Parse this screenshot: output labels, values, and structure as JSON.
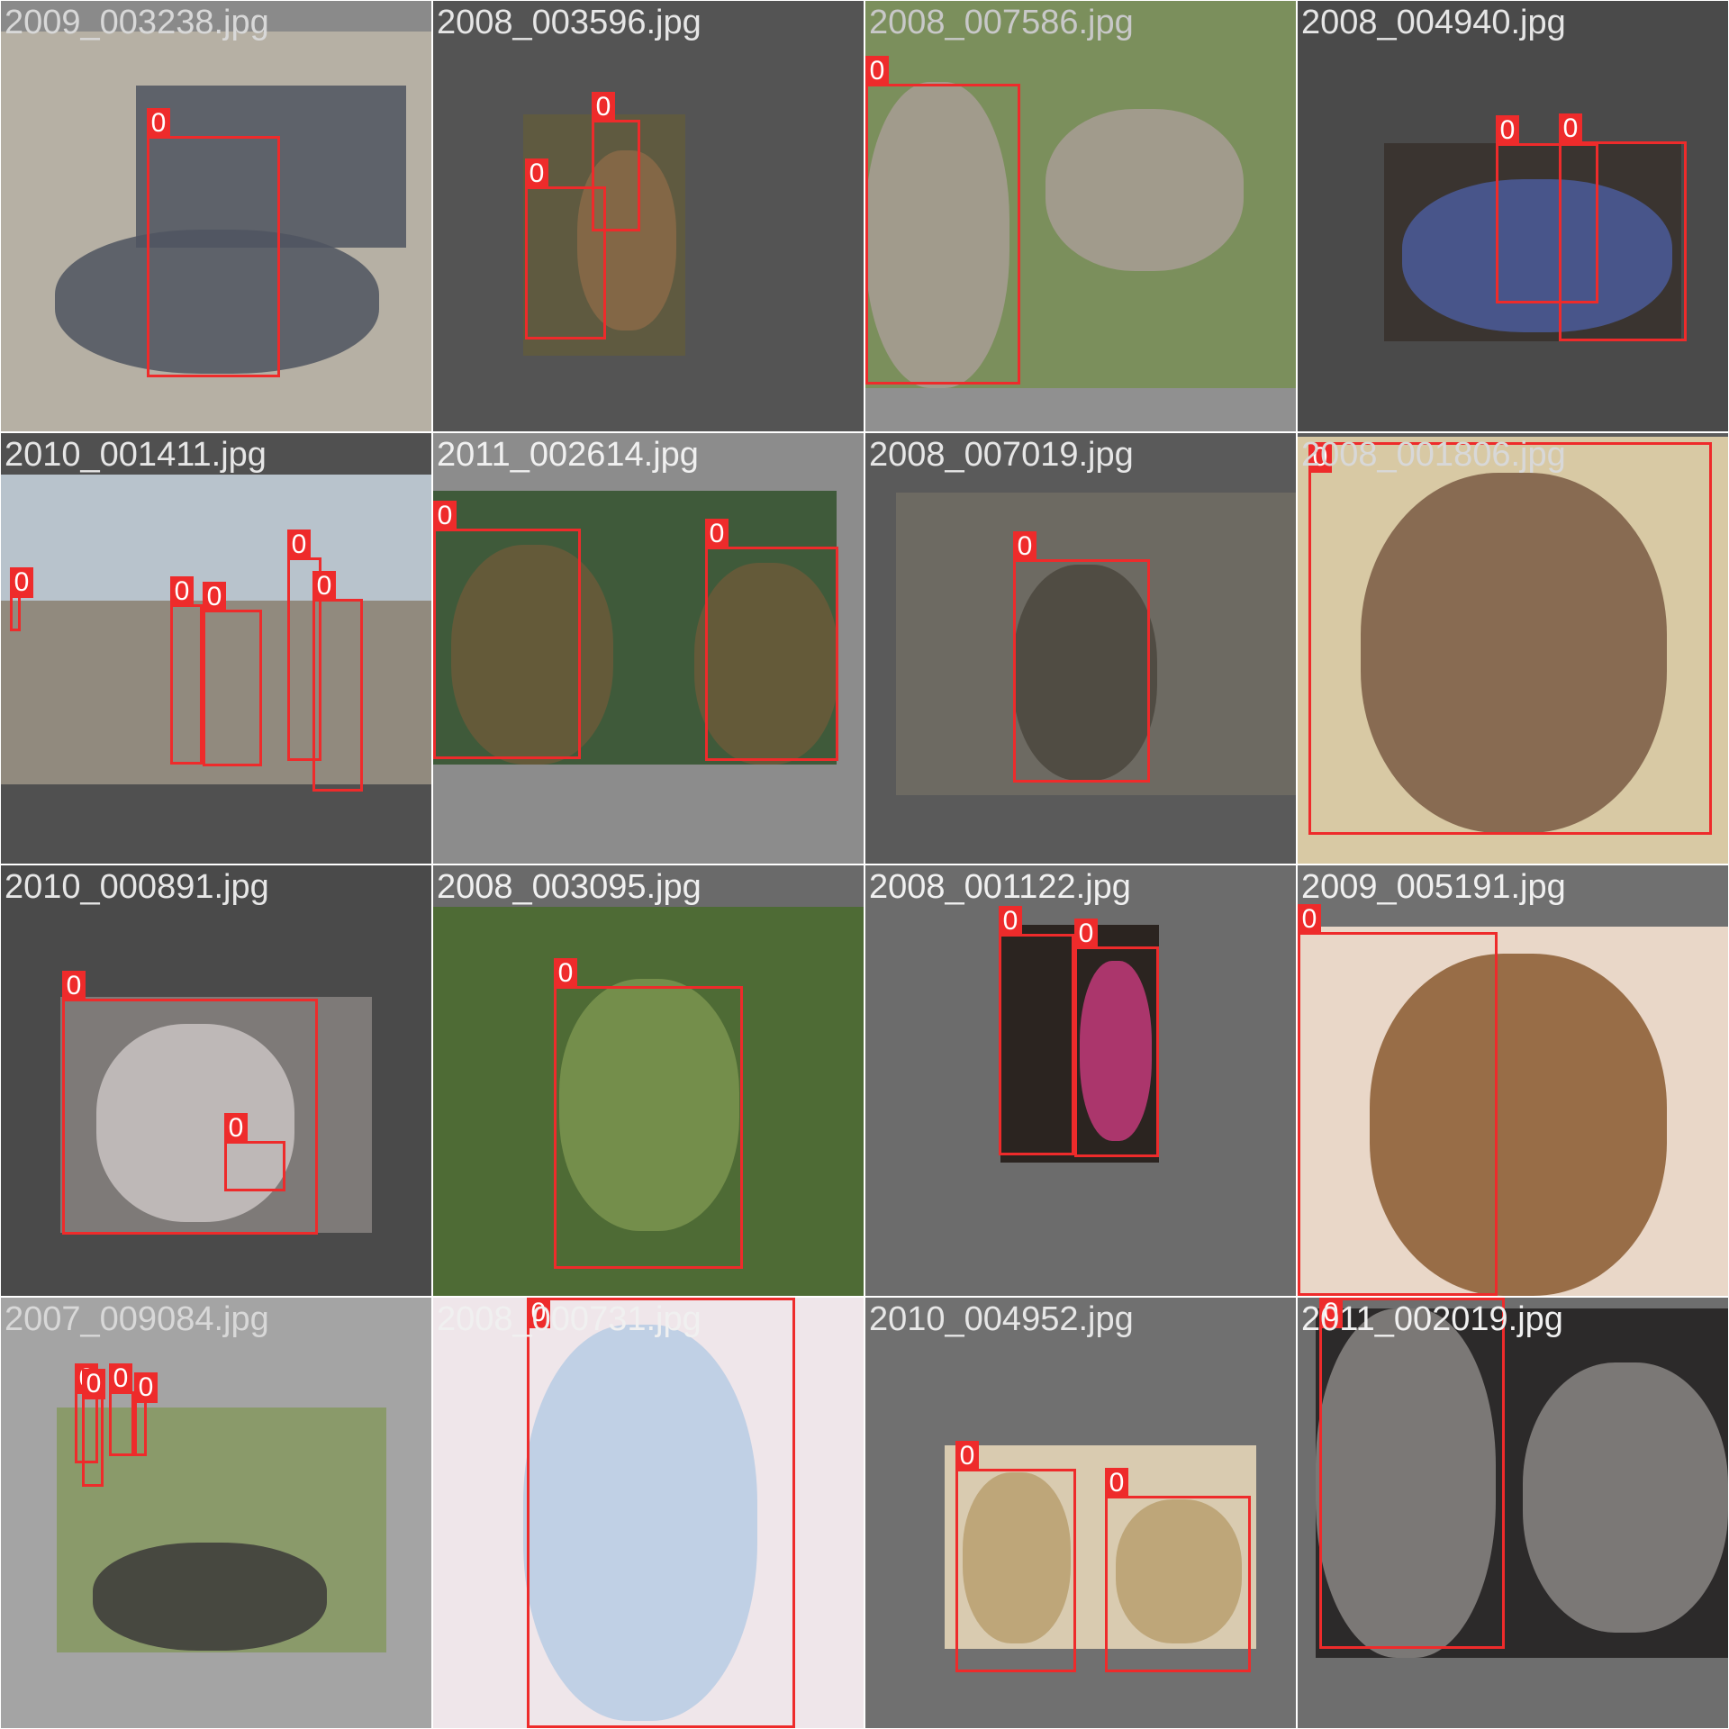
{
  "grid": {
    "rows": 4,
    "columns": 4
  },
  "label_color": "#ee2b2b",
  "label_text_color": "#ffffff",
  "tiles": [
    {
      "filename": "2009_003238.jpg",
      "background": "#8a8a8a",
      "name_color": "#d8d8d8",
      "photo_colors": [
        "#b6b0a4",
        "#4f5560"
      ],
      "boxes": [
        {
          "class_label": "0"
        }
      ]
    },
    {
      "filename": "2008_003596.jpg",
      "background": "#545454",
      "name_color": "#e6e6e6",
      "photo_colors": [
        "#5f5a40",
        "#8a6a48"
      ],
      "boxes": [
        {
          "class_label": "0"
        },
        {
          "class_label": "0"
        }
      ]
    },
    {
      "filename": "2008_007586.jpg",
      "background": "#909090",
      "name_color": "#c8c8c8",
      "photo_colors": [
        "#7b8f5c",
        "#a89e94"
      ],
      "boxes": [
        {
          "class_label": "0"
        }
      ]
    },
    {
      "filename": "2008_004940.jpg",
      "background": "#4a4a4a",
      "name_color": "#e6e6e6",
      "photo_colors": [
        "#3a3430",
        "#4b5c9a"
      ],
      "boxes": [
        {
          "class_label": "0"
        },
        {
          "class_label": "0"
        }
      ]
    },
    {
      "filename": "2010_001411.jpg",
      "background": "#505050",
      "name_color": "#e6e6e6",
      "photo_colors": [
        "#b8c3cc",
        "#8a8070"
      ],
      "boxes": [
        {
          "class_label": "0"
        },
        {
          "class_label": "0"
        },
        {
          "class_label": "0"
        },
        {
          "class_label": "0"
        },
        {
          "class_label": "0"
        }
      ]
    },
    {
      "filename": "2011_002614.jpg",
      "background": "#8c8c8c",
      "name_color": "#f0f0f0",
      "photo_colors": [
        "#3f5a3a",
        "#6b5a3a"
      ],
      "boxes": [
        {
          "class_label": "0"
        },
        {
          "class_label": "0"
        }
      ]
    },
    {
      "filename": "2008_007019.jpg",
      "background": "#5a5a5a",
      "name_color": "#e6e6e6",
      "photo_colors": [
        "#6d6a62",
        "#4b463e"
      ],
      "boxes": [
        {
          "class_label": "0"
        }
      ]
    },
    {
      "filename": "2008_001806.jpg",
      "background": "#5c5c5c",
      "name_color": "#d8d8d8",
      "photo_colors": [
        "#d8c9a4",
        "#7a5a44"
      ],
      "boxes": [
        {
          "class_label": "0"
        }
      ]
    },
    {
      "filename": "2010_000891.jpg",
      "background": "#4a4a4a",
      "name_color": "#e6e6e6",
      "photo_colors": [
        "#7e7a78",
        "#c9c3c2"
      ],
      "boxes": [
        {
          "class_label": "0"
        },
        {
          "class_label": "0"
        }
      ]
    },
    {
      "filename": "2008_003095.jpg",
      "background": "#6a6a6a",
      "name_color": "#f0f0f0",
      "photo_colors": [
        "#4e6b35",
        "#7b944f"
      ],
      "boxes": [
        {
          "class_label": "0"
        }
      ]
    },
    {
      "filename": "2008_001122.jpg",
      "background": "#6c6c6c",
      "name_color": "#f0f0f0",
      "photo_colors": [
        "#2b2420",
        "#c23a7a"
      ],
      "boxes": [
        {
          "class_label": "0"
        },
        {
          "class_label": "0"
        }
      ]
    },
    {
      "filename": "2009_005191.jpg",
      "background": "#707070",
      "name_color": "#f0f0f0",
      "photo_colors": [
        "#e9d7c8",
        "#8a5a30"
      ],
      "boxes": [
        {
          "class_label": "0"
        }
      ]
    },
    {
      "filename": "2007_009084.jpg",
      "background": "#a4a4a4",
      "name_color": "#d8d8d8",
      "photo_colors": [
        "#8a9a6a",
        "#3b3a38"
      ],
      "boxes": [
        {
          "class_label": "0"
        },
        {
          "class_label": "0"
        },
        {
          "class_label": "0"
        },
        {
          "class_label": "0"
        }
      ]
    },
    {
      "filename": "2008_000731.jpg",
      "background": "#6c6c6c",
      "name_color": "#f0f0f0",
      "photo_colors": [
        "#efe6ea",
        "#b7cbe4"
      ],
      "boxes": [
        {
          "class_label": "0"
        }
      ]
    },
    {
      "filename": "2010_004952.jpg",
      "background": "#707070",
      "name_color": "#e6e6e6",
      "photo_colors": [
        "#d9cbb0",
        "#b8a070"
      ],
      "boxes": [
        {
          "class_label": "0"
        },
        {
          "class_label": "0"
        }
      ]
    },
    {
      "filename": "2011_002019.jpg",
      "background": "#6e6e6e",
      "name_color": "#f0f0f0",
      "photo_colors": [
        "#2c2a2a",
        "#8a8684"
      ],
      "boxes": [
        {
          "class_label": "0"
        }
      ]
    }
  ]
}
